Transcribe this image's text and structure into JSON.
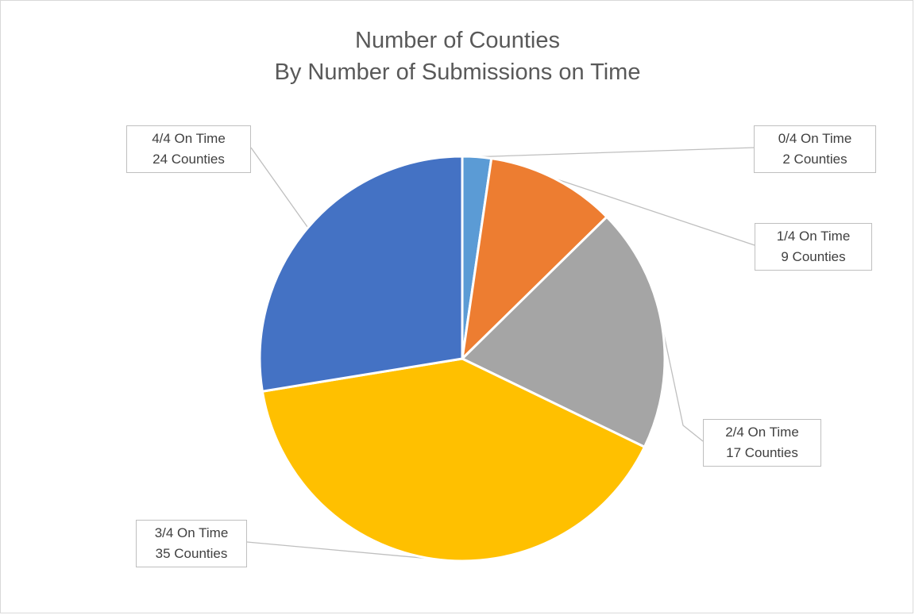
{
  "chart_data": {
    "type": "pie",
    "title": "Number of Counties",
    "subtitle": "By Number of Submissions on Time",
    "categories": [
      "0/4 On Time",
      "1/4 On Time",
      "2/4 On Time",
      "3/4 On Time",
      "4/4 On Time"
    ],
    "values": [
      2,
      9,
      17,
      35,
      24
    ],
    "value_labels": [
      "2 Counties",
      "9 Counties",
      "17 Counties",
      "35 Counties",
      "24 Counties"
    ],
    "colors": [
      "#5b9bd5",
      "#ed7d31",
      "#a5a5a5",
      "#ffc000",
      "#4472c4"
    ],
    "start_angle_deg": 0,
    "direction": "clockwise",
    "legend": "none",
    "data_labels": "callouts"
  }
}
